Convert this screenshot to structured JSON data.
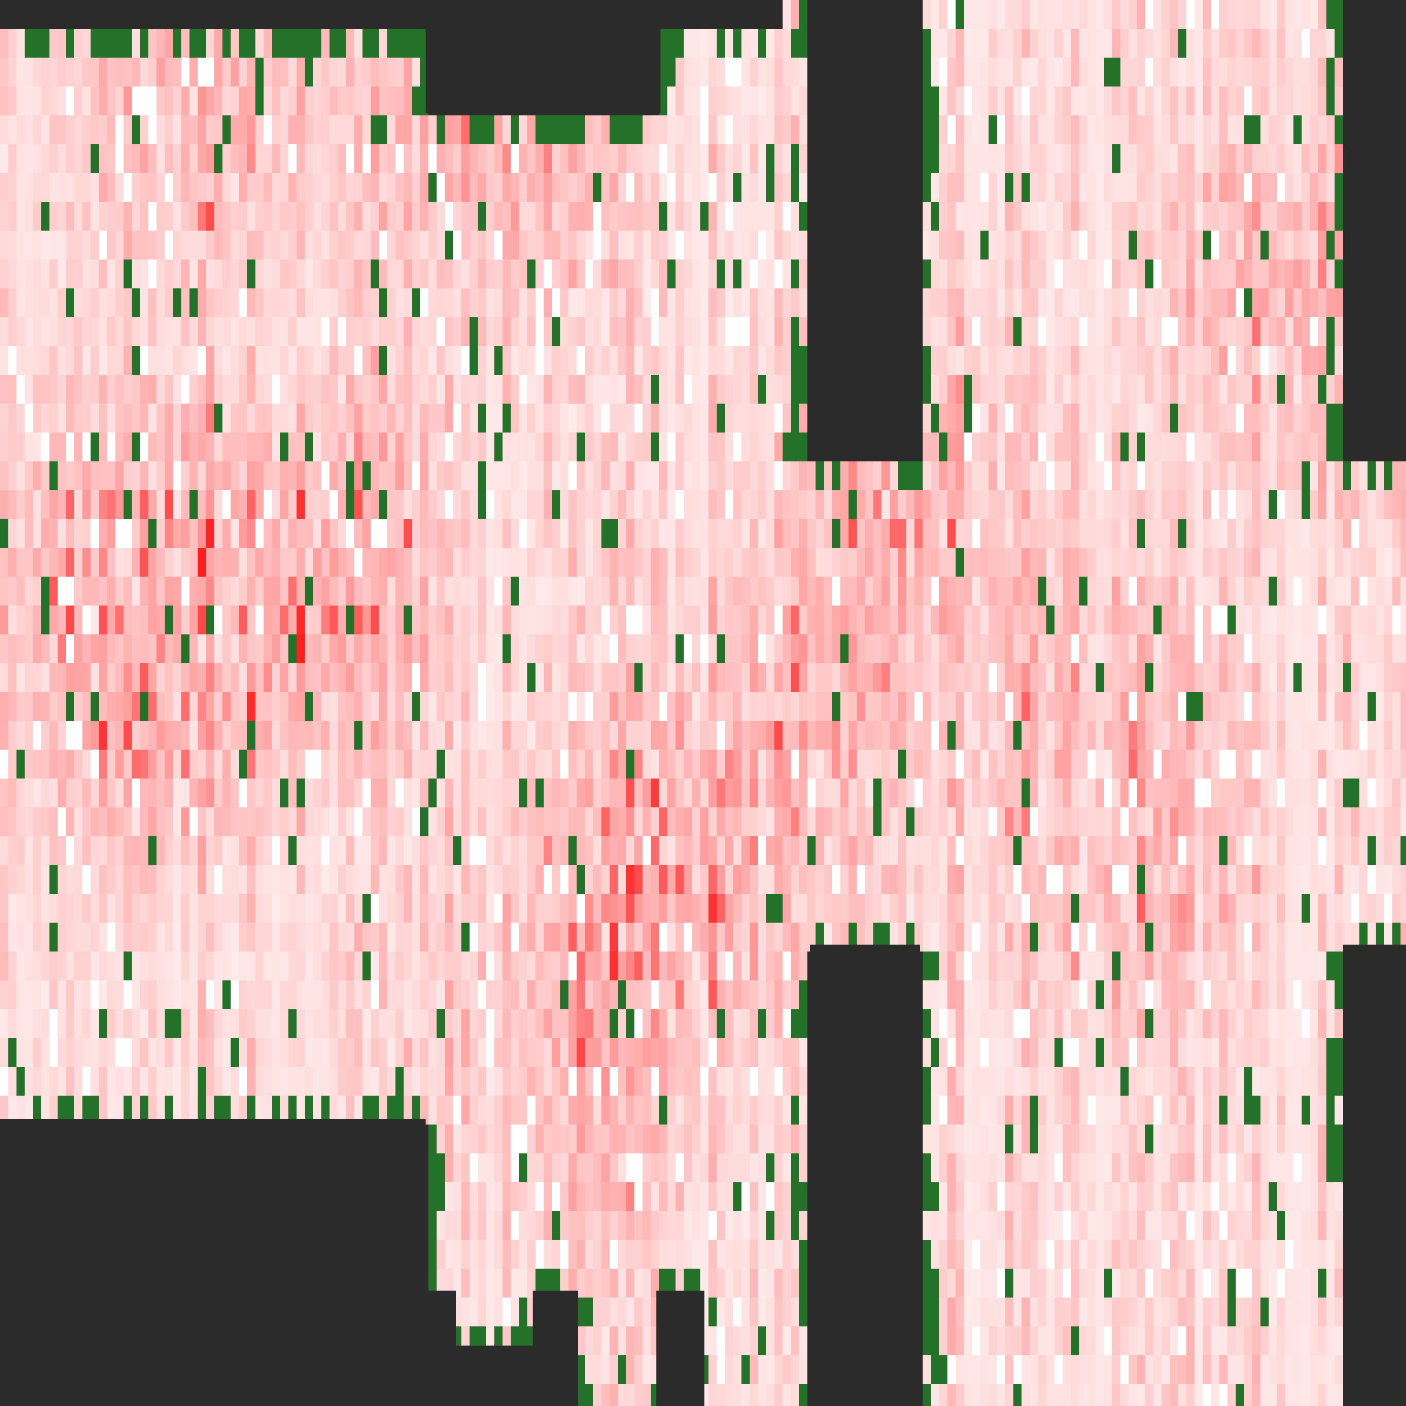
{
  "view": {
    "kind": "pixel-heatmap",
    "palette": {
      "void": "#2b2b2b",
      "green": "#247229",
      "white": "#ffffff",
      "hot": "#ff1f1f",
      "pink_light": "#ffcccc",
      "pink_mid": "#ff9999"
    }
  }
}
